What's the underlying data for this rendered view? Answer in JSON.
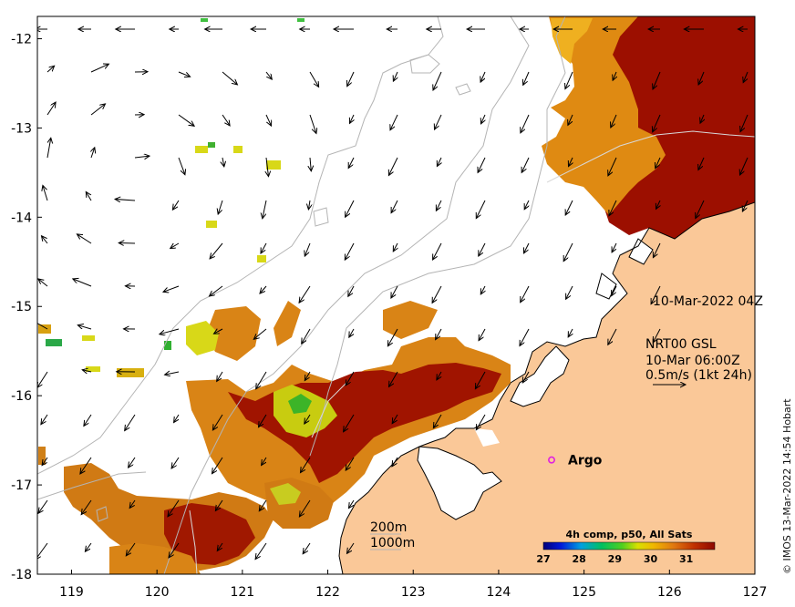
{
  "map": {
    "lon_range": [
      118.6,
      127
    ],
    "lat_range": [
      -18,
      -11.75
    ],
    "x_ticks": [
      {
        "value": 119,
        "label": "119"
      },
      {
        "value": 120,
        "label": "120"
      },
      {
        "value": 121,
        "label": "121"
      },
      {
        "value": 122,
        "label": "122"
      },
      {
        "value": 123,
        "label": "123"
      },
      {
        "value": 124,
        "label": "124"
      },
      {
        "value": 125,
        "label": "125"
      },
      {
        "value": 126,
        "label": "126"
      },
      {
        "value": 127,
        "label": "127"
      }
    ],
    "y_ticks": [
      {
        "value": -12,
        "label": "-12"
      },
      {
        "value": -13,
        "label": "-13"
      },
      {
        "value": -14,
        "label": "-14"
      },
      {
        "value": -15,
        "label": "-15"
      },
      {
        "value": -16,
        "label": "-16"
      },
      {
        "value": -17,
        "label": "-17"
      },
      {
        "value": -18,
        "label": "-18"
      }
    ]
  },
  "sst_timestamp": "10-Mar-2022 04Z",
  "current": {
    "product": "NRT00 GSL",
    "time": "10-Mar 06:00Z",
    "scale_label": "0.5m/s (1kt 24h)"
  },
  "argo": {
    "label": "Argo",
    "lon": 124.62,
    "lat": -16.72
  },
  "legend": {
    "depth_200": "200m",
    "depth_1000": "1000m",
    "colorbar_title": "4h comp, p50, All Sats",
    "ticks": [
      "27",
      "28",
      "29",
      "30",
      "31"
    ],
    "range": [
      27,
      31.8
    ]
  },
  "credit": "© IMOS 13-Mar-2022 14:54 Hobart",
  "colors": {
    "land": "#fac898",
    "sst_hot": "#a01000",
    "sst_warm": "#e08a10",
    "argo": "#e020e0",
    "contour": "#b4b4b4"
  }
}
